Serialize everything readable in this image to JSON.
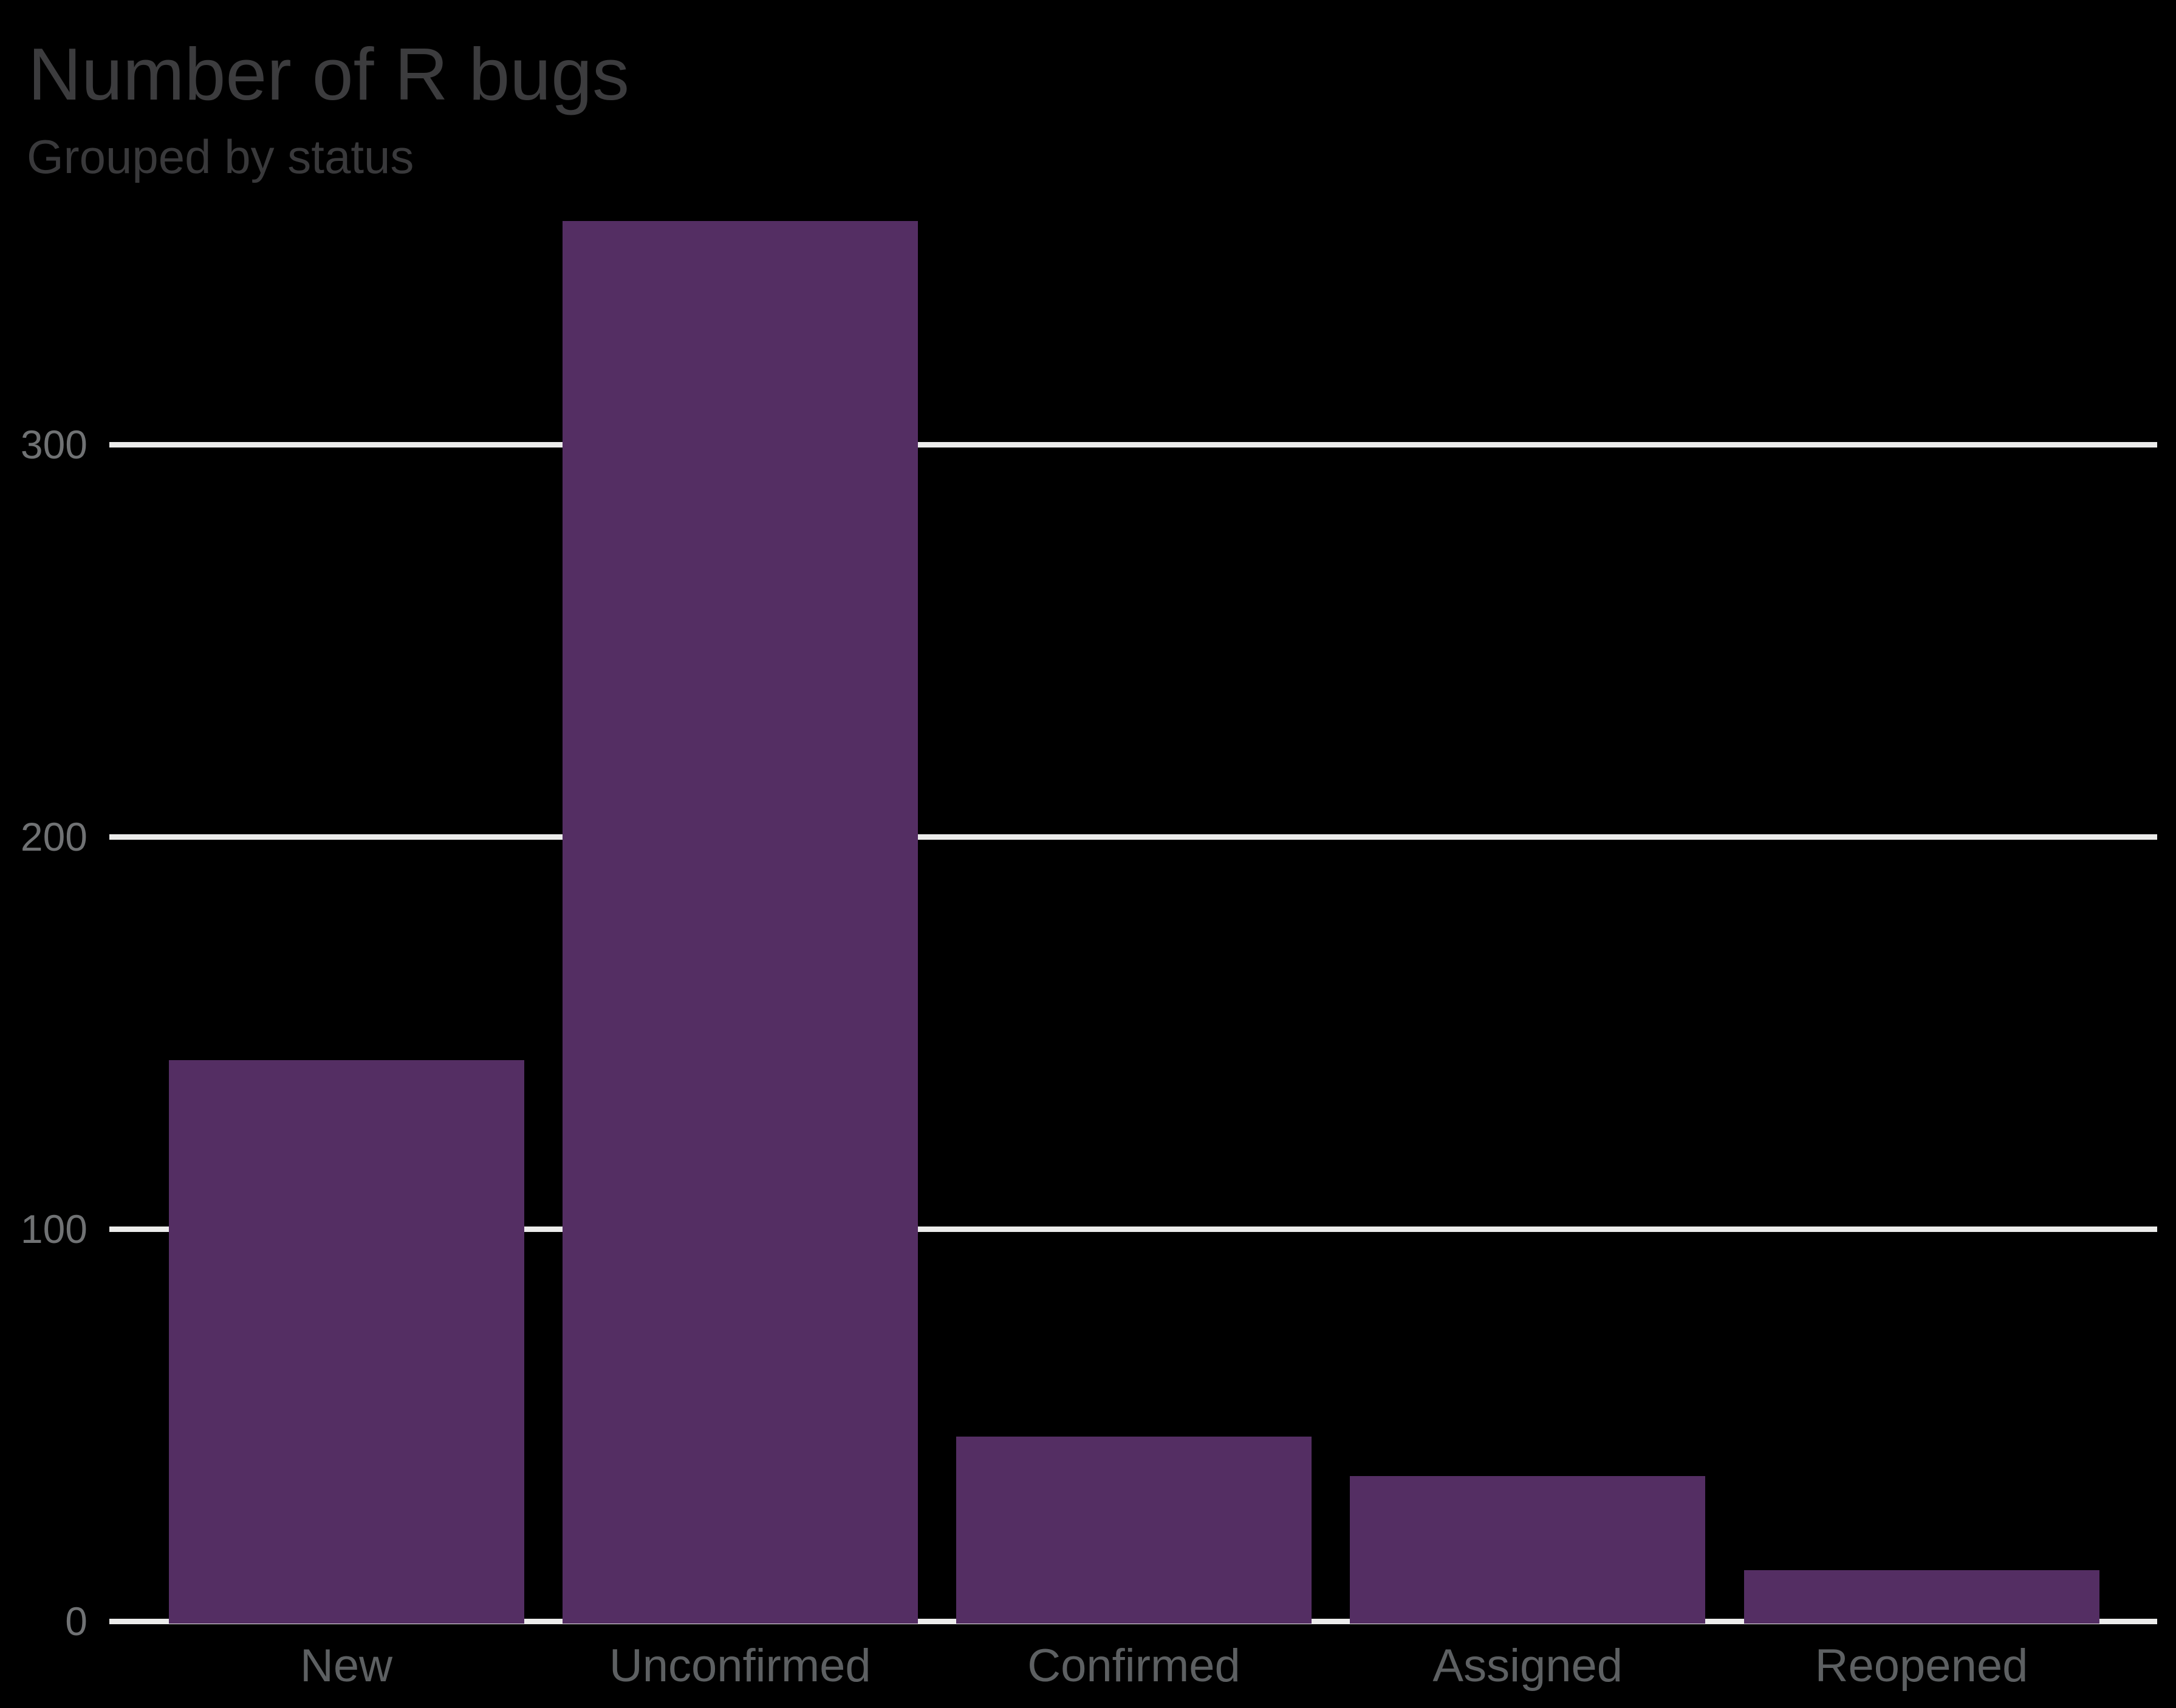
{
  "header": {
    "title": "Number of R bugs",
    "subtitle": "Grouped by status"
  },
  "chart_data": {
    "type": "bar",
    "title": "Number of R bugs",
    "subtitle": "Grouped by status",
    "categories": [
      "New",
      "Unconfirmed",
      "Confirmed",
      "Assigned",
      "Reopened"
    ],
    "values": [
      143,
      357,
      47,
      37,
      13
    ],
    "xlabel": "",
    "ylabel": "",
    "yticks": [
      0,
      100,
      200,
      300
    ],
    "ytick_labels": [
      "0",
      "100",
      "200",
      "300"
    ],
    "ylim": [
      0,
      360
    ],
    "grid": "horizontal-only",
    "legend": "none",
    "bar_color": "#542e63",
    "colors": {
      "background": "#000000",
      "bar": "#542e63",
      "gridline": "#ececeb",
      "tick_label": "#707274",
      "category_label": "#5d6062",
      "title": "#3c3c3e",
      "subtitle": "#39393b"
    }
  }
}
